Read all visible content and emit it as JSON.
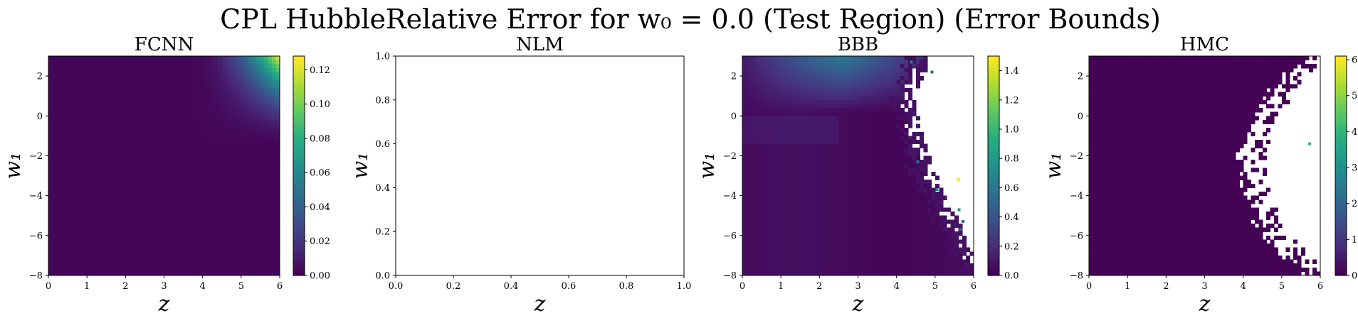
{
  "figure": {
    "title": "CPL HubbleRelative Error for w₀ = 0.0 (Test Region) (Error Bounds)"
  },
  "chart_data": [
    {
      "type": "heatmap",
      "title": "FCNN",
      "xlabel": "z",
      "ylabel": "w₁",
      "xlim": [
        0,
        6
      ],
      "ylim": [
        -8,
        3
      ],
      "xticks": [
        "0",
        "1",
        "2",
        "3",
        "4",
        "5",
        "6"
      ],
      "yticks": [
        "2",
        "0",
        "−2",
        "−4",
        "−6",
        "−8"
      ],
      "colormap": "viridis",
      "colorbar": {
        "min": 0,
        "max": 0.128,
        "ticks": [
          "0.00",
          "0.02",
          "0.04",
          "0.06",
          "0.08",
          "0.10",
          "0.12"
        ]
      },
      "pattern": "error near 0 everywhere; rises toward top-right corner (z≈6, w₁≈3) to about 0.125",
      "missing_region": false
    },
    {
      "type": "empty",
      "title": "NLM",
      "xlabel": "z",
      "ylabel": "w₁",
      "xlim": [
        0,
        1
      ],
      "ylim": [
        0,
        1
      ],
      "xticks": [
        "0.0",
        "0.2",
        "0.4",
        "0.6",
        "0.8",
        "1.0"
      ],
      "yticks": [
        "1.0",
        "0.8",
        "0.6",
        "0.4",
        "0.2",
        "0.0"
      ]
    },
    {
      "type": "heatmap",
      "title": "BBB",
      "xlabel": "z",
      "ylabel": "w₁",
      "xlim": [
        0,
        6
      ],
      "ylim": [
        -8,
        3
      ],
      "xticks": [
        "0",
        "1",
        "2",
        "3",
        "4",
        "5",
        "6"
      ],
      "yticks": [
        "2",
        "0",
        "−2",
        "−4",
        "−6",
        "−8"
      ],
      "colormap": "viridis",
      "colorbar": {
        "min": 0,
        "max": 1.5,
        "ticks": [
          "0.0",
          "0.2",
          "0.4",
          "0.6",
          "0.8",
          "1.0",
          "1.2",
          "1.4"
        ]
      },
      "pattern": "low error at left; upper-left band around 0.4–0.6; white (no data) region on right bounded by a boundary near z≈4 at top curving to z≈6 at bottom; a few scattered outlier cells up to 1.5",
      "missing_region": true
    },
    {
      "type": "heatmap",
      "title": "HMC",
      "xlabel": "z",
      "ylabel": "w₁",
      "xlim": [
        0,
        6
      ],
      "ylim": [
        -8,
        3
      ],
      "xticks": [
        "0",
        "1",
        "2",
        "3",
        "4",
        "5",
        "6"
      ],
      "yticks": [
        "2",
        "0",
        "−2",
        "−4",
        "−6",
        "−8"
      ],
      "colormap": "viridis",
      "colorbar": {
        "min": 0,
        "max": 6.1,
        "ticks": [
          "0",
          "1",
          "2",
          "3",
          "4",
          "5",
          "6"
        ]
      },
      "pattern": "near-zero error everywhere data exists; large white (no data) region on right (z≈4–6) with ragged boundary; one outlier near z≈5.7, w₁≈−1.4 at about 4",
      "missing_region": true
    }
  ]
}
